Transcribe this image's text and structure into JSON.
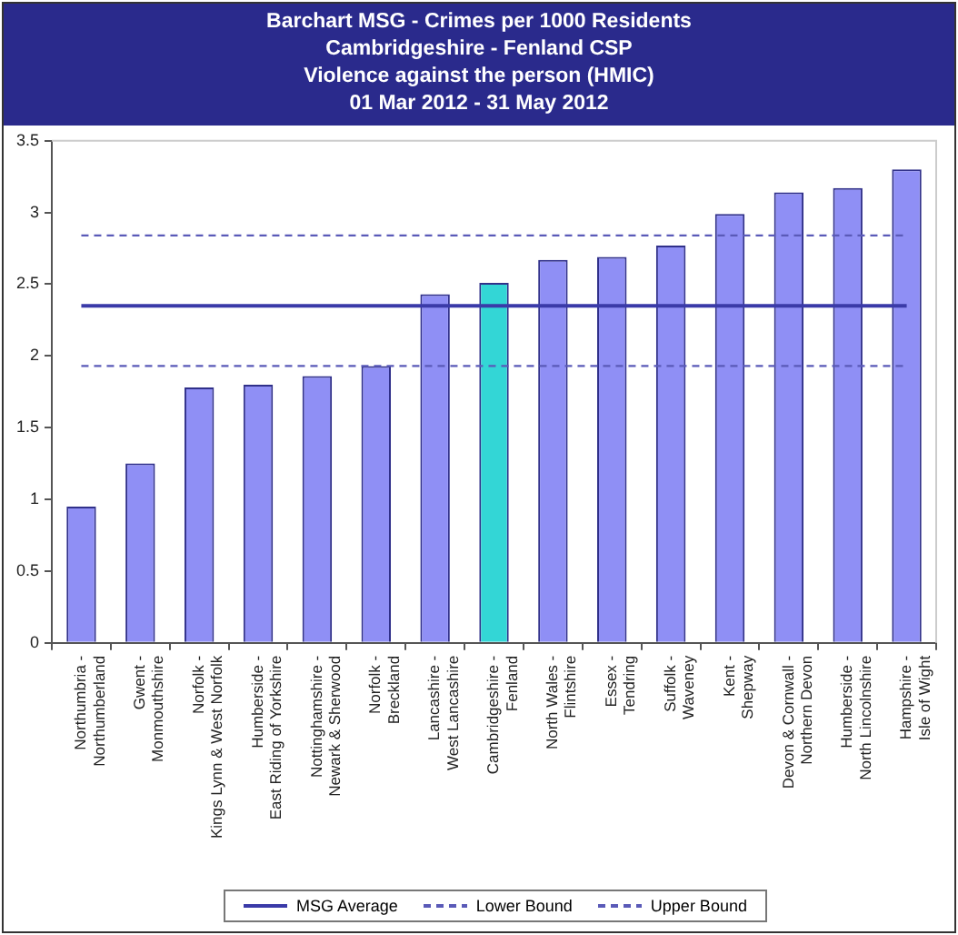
{
  "chart_data": {
    "type": "bar",
    "title": "Barchart MSG - Crimes per 1000 Residents",
    "subtitle": "Cambridgeshire - Fenland CSP\nViolence against the person (HMIC)\n01 Mar 2012 - 31 May 2012",
    "categories": [
      "Northumbria -\nNorthumberland",
      "Gwent -\nMonmouthshire",
      "Norfolk -\nKings Lynn & West Norfolk",
      "Humberside -\nEast Riding of Yorkshire",
      "Nottinghamshire -\nNewark & Sherwood",
      "Norfolk -\nBreckland",
      "Lancashire -\nWest Lancashire",
      "Cambridgeshire -\nFenland",
      "North Wales -\nFlintshire",
      "Essex -\nTendring",
      "Suffolk -\nWaveney",
      "Kent -\nShepway",
      "Devon & Cornwall -\nNorthern Devon",
      "Humberside -\nNorth Lincolnshire",
      "Hampshire -\nIsle of Wight"
    ],
    "values": [
      0.95,
      1.25,
      1.78,
      1.8,
      1.86,
      1.93,
      2.43,
      2.51,
      2.67,
      2.69,
      2.77,
      2.99,
      3.14,
      3.17,
      3.3
    ],
    "colors": [
      "#8f8ff5",
      "#8f8ff5",
      "#8f8ff5",
      "#8f8ff5",
      "#8f8ff5",
      "#8f8ff5",
      "#8f8ff5",
      "#33d6d6",
      "#8f8ff5",
      "#8f8ff5",
      "#8f8ff5",
      "#8f8ff5",
      "#8f8ff5",
      "#8f8ff5",
      "#8f8ff5"
    ],
    "ylim": [
      0,
      3.5
    ],
    "yticks": [
      0,
      0.5,
      1,
      1.5,
      2,
      2.5,
      3,
      3.5
    ],
    "grid": false,
    "legend": "bottom",
    "ref_lines": [
      {
        "axis": "y",
        "value": 2.35,
        "label": "MSG Average",
        "color": "#3a3aa8",
        "line_style": "solid"
      },
      {
        "axis": "y",
        "value": 1.93,
        "label": "Lower Bound",
        "color": "#5a5ab8",
        "line_style": "dashed"
      },
      {
        "axis": "y",
        "value": 2.84,
        "label": "Upper Bound",
        "color": "#5a5ab8",
        "line_style": "dashed"
      }
    ]
  }
}
